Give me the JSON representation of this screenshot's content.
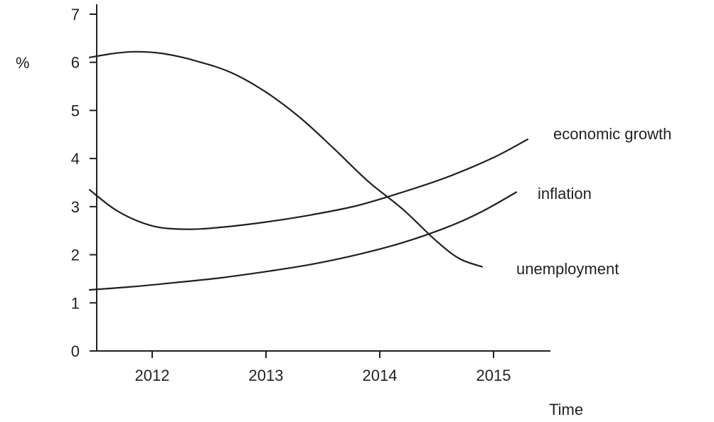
{
  "chart_data": {
    "type": "line",
    "title": "",
    "xlabel": "Time",
    "ylabel": "%",
    "xlim": [
      2011.45,
      2015.5
    ],
    "ylim": [
      0,
      7
    ],
    "x_ticks": [
      2012,
      2013,
      2014,
      2015
    ],
    "x_tick_labels": [
      "2012",
      "2013",
      "2014",
      "2015"
    ],
    "y_ticks": [
      0,
      1,
      2,
      3,
      4,
      5,
      6,
      7
    ],
    "y_tick_labels": [
      "0",
      "1",
      "2",
      "3",
      "4",
      "5",
      "6",
      "7"
    ],
    "grid": false,
    "legend": "none",
    "series": [
      {
        "name": "economic growth",
        "x": [
          2011.45,
          2011.7,
          2012.0,
          2012.3,
          2012.6,
          2013.0,
          2013.4,
          2013.8,
          2014.2,
          2014.6,
          2015.0,
          2015.3
        ],
        "y": [
          3.35,
          2.9,
          2.6,
          2.53,
          2.57,
          2.68,
          2.83,
          3.02,
          3.3,
          3.62,
          4.02,
          4.4
        ]
      },
      {
        "name": "inflation",
        "x": [
          2011.45,
          2011.8,
          2012.2,
          2012.6,
          2013.0,
          2013.4,
          2013.8,
          2014.2,
          2014.6,
          2014.9,
          2015.2
        ],
        "y": [
          1.27,
          1.33,
          1.42,
          1.52,
          1.65,
          1.8,
          2.0,
          2.25,
          2.58,
          2.9,
          3.3
        ]
      },
      {
        "name": "unemployment",
        "x": [
          2011.45,
          2011.65,
          2011.85,
          2012.1,
          2012.4,
          2012.7,
          2013.0,
          2013.3,
          2013.6,
          2013.9,
          2014.2,
          2014.5,
          2014.7,
          2014.9
        ],
        "y": [
          6.1,
          6.18,
          6.22,
          6.18,
          6.02,
          5.78,
          5.38,
          4.85,
          4.2,
          3.52,
          2.95,
          2.28,
          1.92,
          1.75
        ]
      }
    ],
    "series_label_text": [
      "economic growth",
      "inflation",
      "unemployment"
    ]
  }
}
